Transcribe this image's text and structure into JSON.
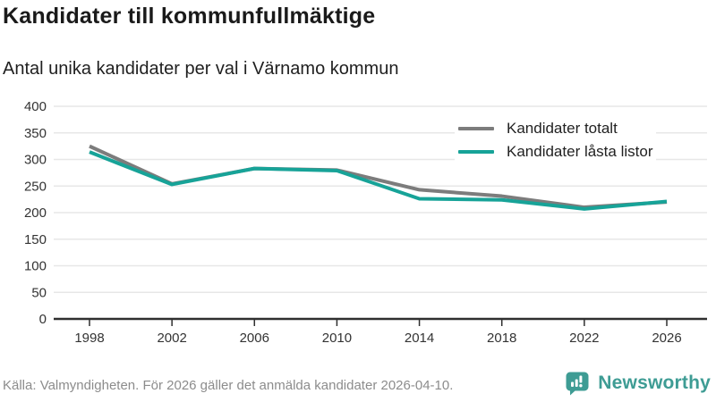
{
  "title": "Kandidater till kommunfullmäktige",
  "subtitle": "Antal unika kandidater per val i Värnamo kommun",
  "footer": {
    "source": "Källa: Valmyndigheten. För 2026 gäller det anmälda kandidater 2026-04-10."
  },
  "branding": {
    "name": "Newsworthy",
    "color": "#3e9c94"
  },
  "colors": {
    "total_line": "#7c7c7c",
    "locked_line": "#17a398",
    "grid": "#e7e7e7",
    "axis": "#2f2f2f",
    "tick_text": "#333333"
  },
  "chart_data": {
    "type": "line",
    "x": [
      1998,
      2002,
      2006,
      2010,
      2014,
      2018,
      2022,
      2026
    ],
    "series": [
      {
        "name": "Kandidater totalt",
        "color": "#7c7c7c",
        "values": [
          325,
          254,
          283,
          280,
          243,
          231,
          210,
          220
        ]
      },
      {
        "name": "Kandidater låsta listor",
        "color": "#17a398",
        "values": [
          314,
          253,
          283,
          279,
          226,
          224,
          207,
          221
        ]
      }
    ],
    "ylim": [
      0,
      400
    ],
    "ytick_step": 50,
    "yticks": [
      0,
      50,
      100,
      150,
      200,
      250,
      300,
      350,
      400
    ],
    "grid": true,
    "legend_position": "top-right",
    "xlabel": "",
    "ylabel": ""
  }
}
